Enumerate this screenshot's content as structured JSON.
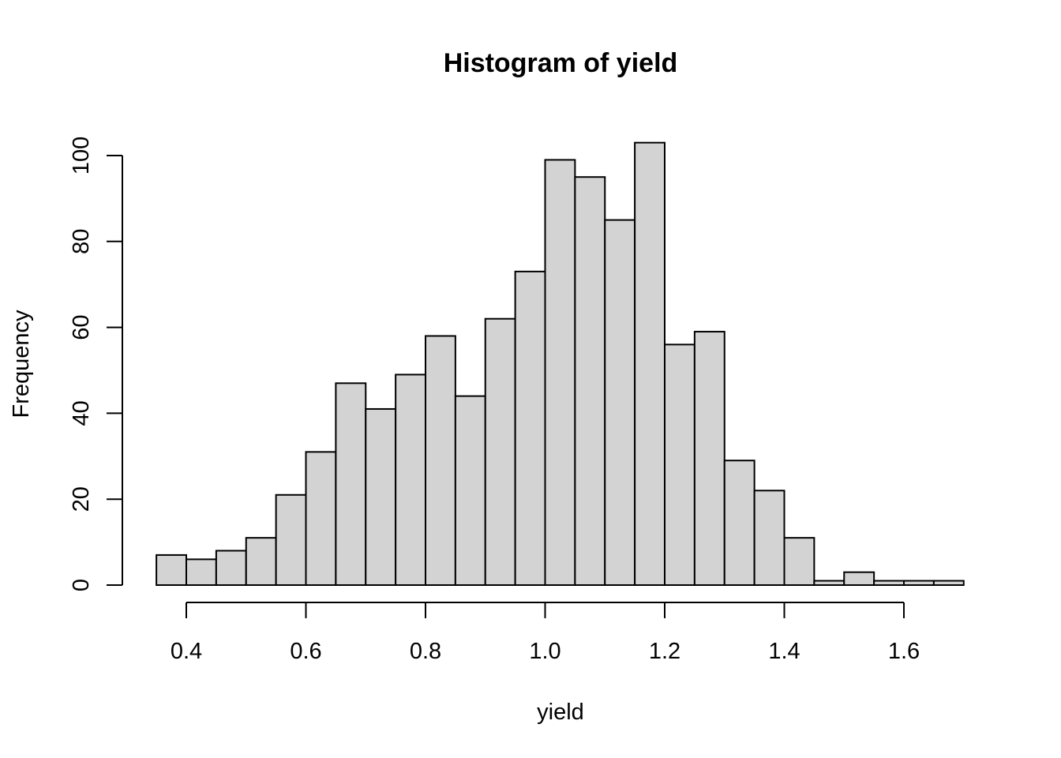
{
  "chart_data": {
    "type": "bar",
    "title": "Histogram of yield",
    "xlabel": "yield",
    "ylabel": "Frequency",
    "bin_width": 0.05,
    "bins": [
      [
        0.35,
        0.4
      ],
      [
        0.4,
        0.45
      ],
      [
        0.45,
        0.5
      ],
      [
        0.5,
        0.55
      ],
      [
        0.55,
        0.6
      ],
      [
        0.6,
        0.65
      ],
      [
        0.65,
        0.7
      ],
      [
        0.7,
        0.75
      ],
      [
        0.75,
        0.8
      ],
      [
        0.8,
        0.85
      ],
      [
        0.85,
        0.9
      ],
      [
        0.9,
        0.95
      ],
      [
        0.95,
        1.0
      ],
      [
        1.0,
        1.05
      ],
      [
        1.05,
        1.1
      ],
      [
        1.1,
        1.15
      ],
      [
        1.15,
        1.2
      ],
      [
        1.2,
        1.25
      ],
      [
        1.25,
        1.3
      ],
      [
        1.3,
        1.35
      ],
      [
        1.35,
        1.4
      ],
      [
        1.4,
        1.45
      ],
      [
        1.45,
        1.5
      ],
      [
        1.5,
        1.55
      ],
      [
        1.55,
        1.6
      ],
      [
        1.6,
        1.65
      ],
      [
        1.65,
        1.7
      ]
    ],
    "values": [
      7,
      6,
      8,
      11,
      21,
      31,
      47,
      41,
      49,
      58,
      44,
      62,
      73,
      99,
      95,
      85,
      103,
      56,
      59,
      29,
      22,
      11,
      1,
      3,
      1,
      1,
      1
    ],
    "x_ticks": [
      0.4,
      0.6,
      0.8,
      1.0,
      1.2,
      1.4,
      1.6
    ],
    "x_tick_labels": [
      "0.4",
      "0.6",
      "0.8",
      "1.0",
      "1.2",
      "1.4",
      "1.6"
    ],
    "y_ticks": [
      0,
      20,
      40,
      60,
      80,
      100
    ],
    "y_tick_labels": [
      "0",
      "20",
      "40",
      "60",
      "80",
      "100"
    ],
    "xlim": [
      0.35,
      1.7
    ],
    "ylim": [
      0,
      103
    ],
    "grid": false,
    "legend": "none",
    "colors": {
      "bar_fill": "#d3d3d3",
      "bar_stroke": "#000000",
      "background": "#ffffff"
    }
  }
}
